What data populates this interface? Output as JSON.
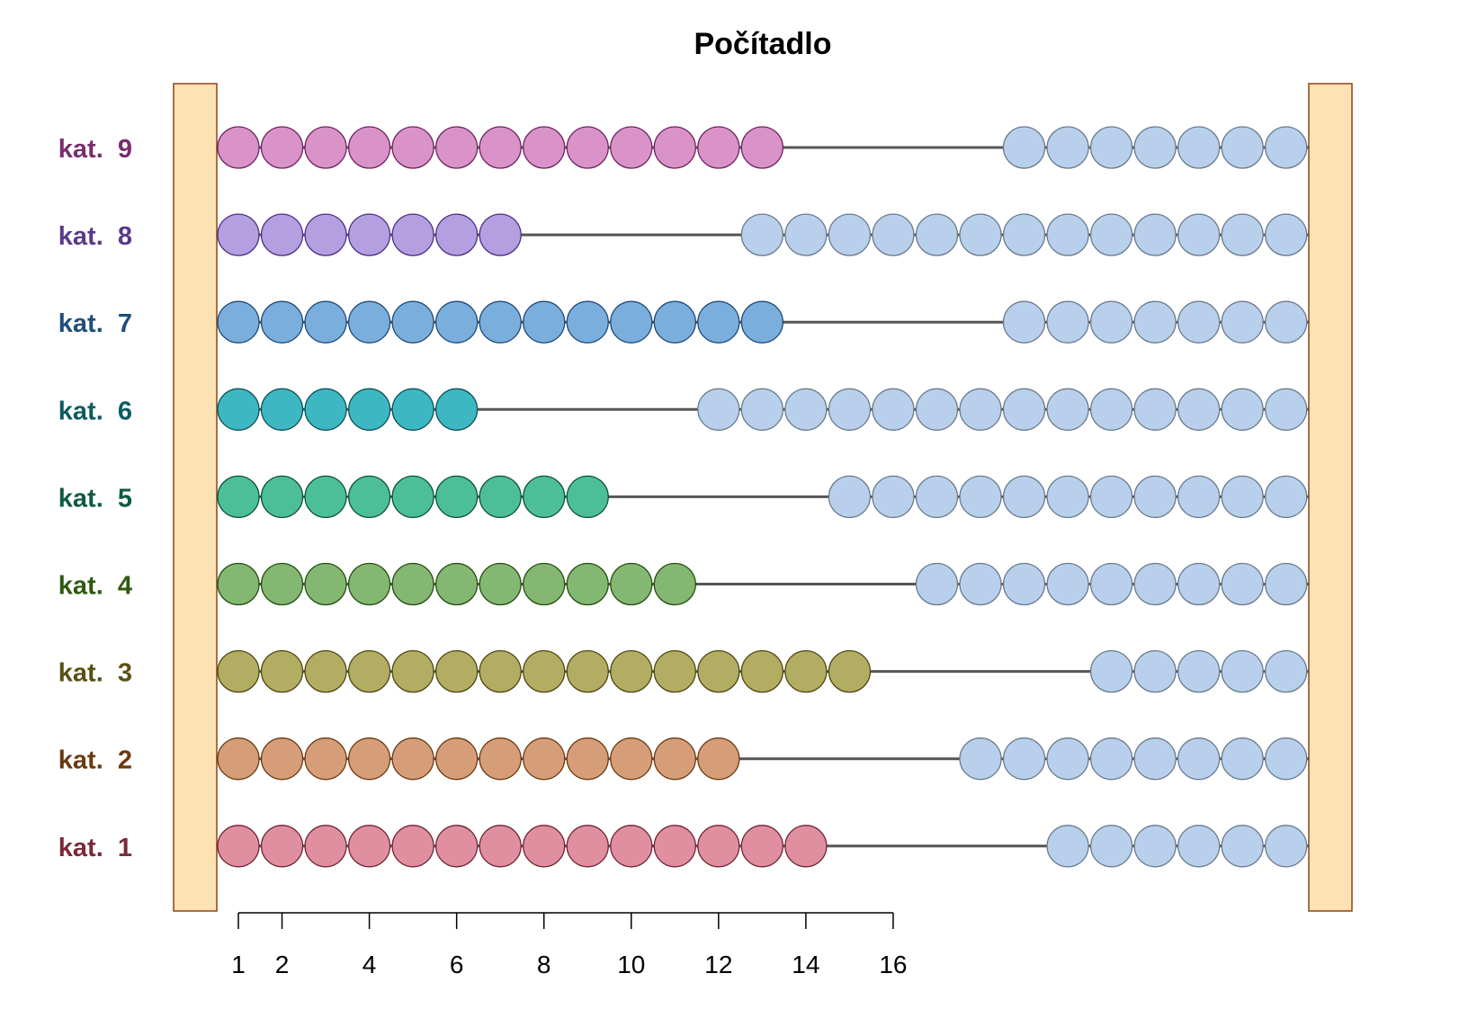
{
  "chart_data": {
    "type": "abacus",
    "title": "Počítadlo",
    "total_beads_per_row": 20,
    "rows": [
      {
        "label": "kat.  1",
        "value": 14,
        "color": "#E08FA0",
        "border": "#6E2434",
        "label_color": "#7A2A3A"
      },
      {
        "label": "kat.  2",
        "value": 12,
        "color": "#D69E78",
        "border": "#6B3A10",
        "label_color": "#6B3A10"
      },
      {
        "label": "kat.  3",
        "value": 15,
        "color": "#B3AC63",
        "border": "#4E4810",
        "label_color": "#5A5014"
      },
      {
        "label": "kat.  4",
        "value": 11,
        "color": "#84B772",
        "border": "#244F10",
        "label_color": "#2E5A12"
      },
      {
        "label": "kat.  5",
        "value": 9,
        "color": "#4CBF98",
        "border": "#0E5238",
        "label_color": "#0E5B40"
      },
      {
        "label": "kat.  6",
        "value": 6,
        "color": "#3DB8C3",
        "border": "#0E4F56",
        "label_color": "#0E5B63"
      },
      {
        "label": "kat.  7",
        "value": 13,
        "color": "#7AAEDD",
        "border": "#1F4A78",
        "label_color": "#1F4E7A"
      },
      {
        "label": "kat.  8",
        "value": 7,
        "color": "#B49FE0",
        "border": "#4E2F84",
        "label_color": "#5A3A8A"
      },
      {
        "label": "kat.  9",
        "value": 13,
        "color": "#DA93C8",
        "border": "#6E2460",
        "label_color": "#7B2D6E"
      }
    ],
    "remaining_color": "#B8D0EC",
    "remaining_border": "#6A7A8C",
    "frame_color": "#FDE3B3",
    "frame_border": "#8B4513",
    "x_ticks": [
      1,
      2,
      4,
      6,
      8,
      10,
      12,
      14,
      16
    ],
    "x_tick_labels": [
      "1",
      "2",
      "4",
      "6",
      "8",
      "10",
      "12",
      "14",
      "16"
    ],
    "xlim": [
      1,
      16
    ]
  }
}
